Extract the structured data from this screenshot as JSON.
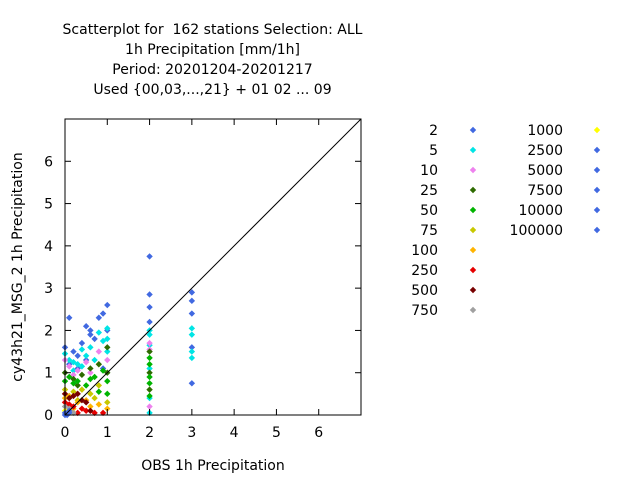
{
  "chart_data": {
    "type": "scatter",
    "title_lines": [
      "Scatterplot for  162 stations Selection: ALL",
      "1h Precipitation [mm/1h]",
      "Period: 20201204-20201217",
      "Used {00,03,...,21} + 01 02 ... 09"
    ],
    "xlabel": "OBS 1h Precipitation",
    "ylabel": "cy43h21_MSG_2 1h Precipitation",
    "xlim": [
      0,
      7
    ],
    "ylim": [
      0,
      7
    ],
    "xticks": [
      "0",
      "1",
      "2",
      "3",
      "4",
      "5",
      "6"
    ],
    "yticks": [
      "0",
      "1",
      "2",
      "3",
      "4",
      "5",
      "6"
    ],
    "grid": false,
    "diagonal": true,
    "legend_position": "right",
    "series": [
      {
        "name": "2",
        "color": "#4169e1",
        "points": [
          [
            0,
            1.6
          ],
          [
            0.1,
            2.3
          ],
          [
            0.2,
            1.5
          ],
          [
            0.3,
            1.4
          ],
          [
            0.4,
            1.7
          ],
          [
            0.5,
            2.1
          ],
          [
            0.6,
            2.0
          ],
          [
            0.7,
            1.8
          ],
          [
            0.8,
            2.3
          ],
          [
            0.9,
            2.4
          ],
          [
            1.0,
            2.6
          ],
          [
            1.0,
            2.0
          ],
          [
            0.5,
            1.3
          ],
          [
            0.3,
            1.1
          ],
          [
            0.1,
            1.2
          ],
          [
            2.0,
            3.75
          ],
          [
            2.0,
            2.85
          ],
          [
            2.0,
            2.55
          ],
          [
            2.0,
            2.2
          ],
          [
            3.0,
            2.9
          ],
          [
            3.0,
            2.7
          ],
          [
            3.0,
            2.4
          ],
          [
            3.0,
            1.6
          ],
          [
            3.0,
            0.75
          ],
          [
            0.6,
            1.9
          ],
          [
            0.9,
            1.1
          ]
        ]
      },
      {
        "name": "5",
        "color": "#00e5e5",
        "points": [
          [
            0,
            1.45
          ],
          [
            0.1,
            1.3
          ],
          [
            0.2,
            1.25
          ],
          [
            0.3,
            1.2
          ],
          [
            0.4,
            1.55
          ],
          [
            0.5,
            1.4
          ],
          [
            0.6,
            1.6
          ],
          [
            0.7,
            1.3
          ],
          [
            0.8,
            1.95
          ],
          [
            0.9,
            1.75
          ],
          [
            1.0,
            2.05
          ],
          [
            1.0,
            1.8
          ],
          [
            1.0,
            1.5
          ],
          [
            2.0,
            2.0
          ],
          [
            2.0,
            1.9
          ],
          [
            2.0,
            1.65
          ],
          [
            2.0,
            1.1
          ],
          [
            2.0,
            0.4
          ],
          [
            2.0,
            0.05
          ],
          [
            3.0,
            2.05
          ],
          [
            3.0,
            1.9
          ],
          [
            3.0,
            1.5
          ],
          [
            3.0,
            1.35
          ],
          [
            0.2,
            1.05
          ],
          [
            0.4,
            1.15
          ]
        ]
      },
      {
        "name": "10",
        "color": "#ee82ee",
        "points": [
          [
            0,
            1.3
          ],
          [
            0.1,
            1.15
          ],
          [
            0.3,
            1.05
          ],
          [
            0.5,
            1.25
          ],
          [
            0.6,
            1.0
          ],
          [
            0.8,
            1.5
          ],
          [
            1.0,
            1.3
          ],
          [
            2.0,
            1.7
          ],
          [
            2.0,
            1.55
          ],
          [
            2.0,
            0.2
          ],
          [
            0.2,
            0.95
          ]
        ]
      },
      {
        "name": "25",
        "color": "#2e6b00",
        "points": [
          [
            0,
            1.0
          ],
          [
            0.2,
            0.85
          ],
          [
            0.4,
            0.95
          ],
          [
            0.6,
            1.1
          ],
          [
            0.8,
            1.2
          ],
          [
            1.0,
            1.6
          ],
          [
            1.0,
            1.0
          ],
          [
            2.0,
            1.5
          ],
          [
            2.0,
            1.0
          ],
          [
            2.0,
            0.6
          ],
          [
            0.3,
            0.7
          ]
        ]
      },
      {
        "name": "50",
        "color": "#00b400",
        "points": [
          [
            0,
            0.8
          ],
          [
            0.1,
            0.9
          ],
          [
            0.2,
            0.75
          ],
          [
            0.3,
            0.8
          ],
          [
            0.5,
            0.7
          ],
          [
            0.6,
            0.85
          ],
          [
            0.7,
            0.9
          ],
          [
            0.9,
            1.05
          ],
          [
            1.0,
            0.8
          ],
          [
            1.0,
            0.5
          ],
          [
            2.0,
            1.35
          ],
          [
            2.0,
            1.2
          ],
          [
            2.0,
            0.9
          ],
          [
            2.0,
            0.75
          ],
          [
            2.0,
            0.45
          ],
          [
            0.8,
            0.55
          ]
        ]
      },
      {
        "name": "75",
        "color": "#c8c800",
        "points": [
          [
            0,
            0.6
          ],
          [
            0.2,
            0.55
          ],
          [
            0.4,
            0.6
          ],
          [
            0.6,
            0.5
          ],
          [
            0.8,
            0.7
          ],
          [
            1.0,
            0.3
          ],
          [
            0.3,
            0.35
          ],
          [
            0.7,
            0.4
          ]
        ]
      },
      {
        "name": "100",
        "color": "#ffb400",
        "points": [
          [
            0,
            0.4
          ],
          [
            0.1,
            0.45
          ],
          [
            0.3,
            0.3
          ],
          [
            0.5,
            0.35
          ],
          [
            0.6,
            0.2
          ],
          [
            0.8,
            0.25
          ],
          [
            1.0,
            0.15
          ],
          [
            0.2,
            0.15
          ]
        ]
      },
      {
        "name": "250",
        "color": "#e60000",
        "points": [
          [
            0,
            0.3
          ],
          [
            0.1,
            0.25
          ],
          [
            0.2,
            0.2
          ],
          [
            0.4,
            0.15
          ],
          [
            0.5,
            0.1
          ],
          [
            0.7,
            0.05
          ],
          [
            0.9,
            0.05
          ],
          [
            0.3,
            0.05
          ]
        ]
      },
      {
        "name": "500",
        "color": "#780000",
        "points": [
          [
            0,
            0.5
          ],
          [
            0.1,
            0.4
          ],
          [
            0.2,
            0.45
          ],
          [
            0.3,
            0.5
          ],
          [
            0.4,
            0.35
          ],
          [
            0.5,
            0.3
          ],
          [
            0.6,
            0.1
          ]
        ]
      },
      {
        "name": "750",
        "color": "#a0a0a0",
        "points": [
          [
            0,
            0.2
          ],
          [
            0.1,
            0.15
          ],
          [
            0.2,
            0.05
          ]
        ]
      },
      {
        "name": "1000",
        "color": "#ffff00",
        "points": [
          [
            0,
            0.1
          ]
        ]
      },
      {
        "name": "2500",
        "color": "#4169e1",
        "points": [
          [
            0,
            0.05
          ]
        ]
      },
      {
        "name": "5000",
        "color": "#4169e1",
        "points": [
          [
            0.05,
            0.0
          ]
        ]
      },
      {
        "name": "7500",
        "color": "#4169e1",
        "points": [
          [
            0.1,
            0.05
          ]
        ]
      },
      {
        "name": "10000",
        "color": "#4169e1",
        "points": [
          [
            0.1,
            0.1
          ]
        ]
      },
      {
        "name": "100000",
        "color": "#4169e1",
        "points": [
          [
            0,
            0
          ]
        ]
      }
    ]
  }
}
